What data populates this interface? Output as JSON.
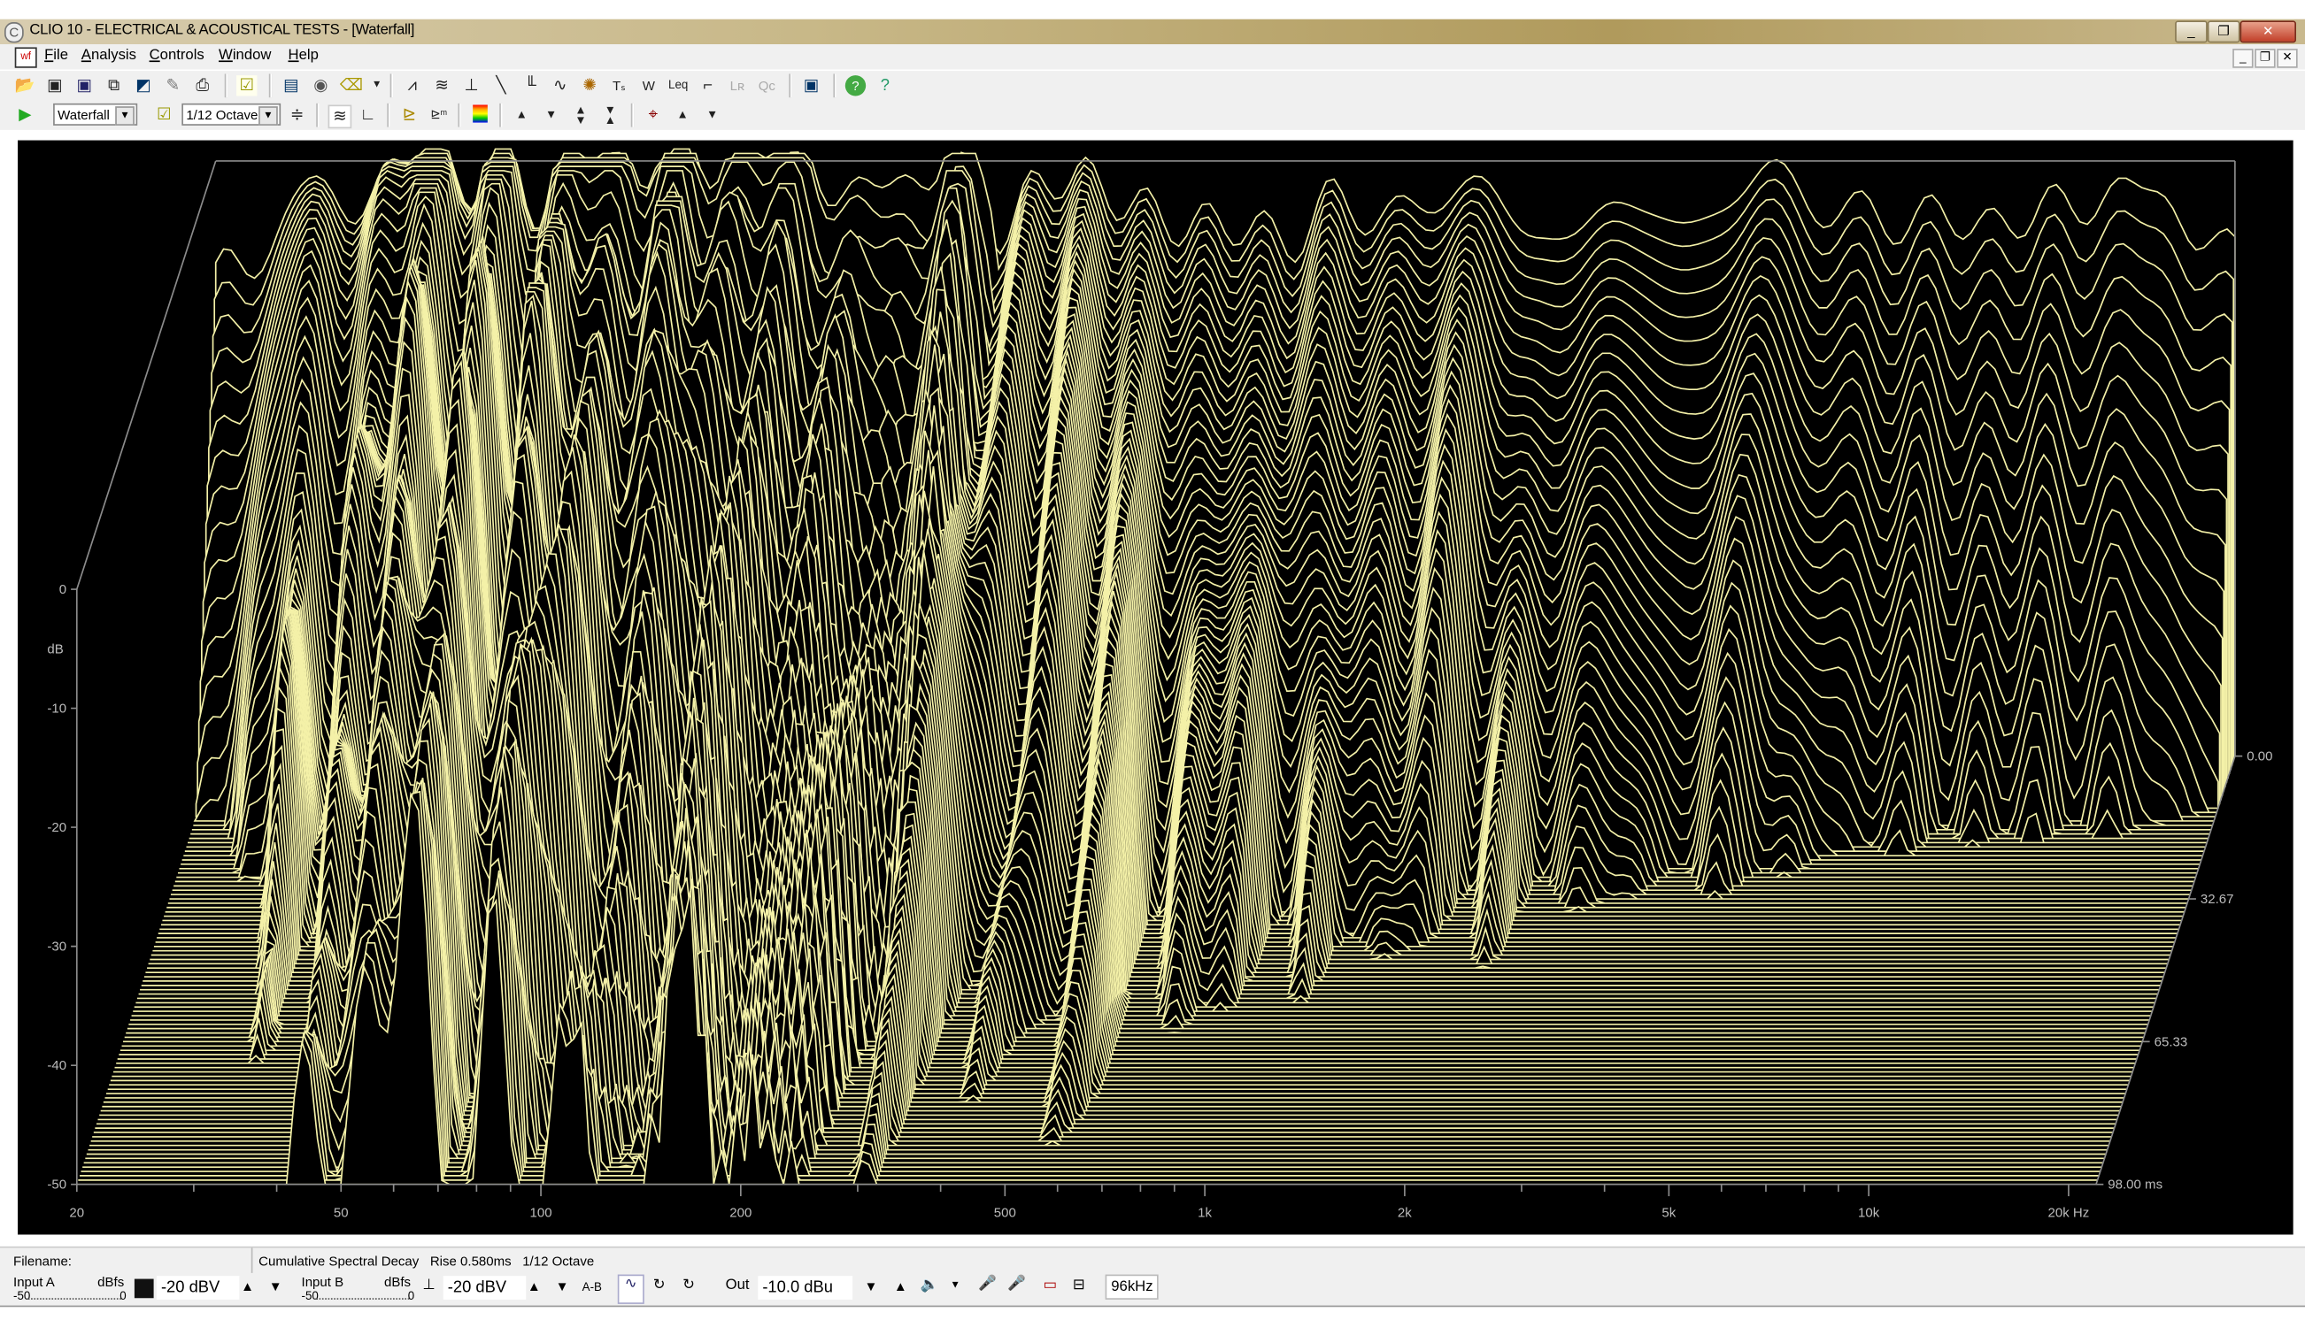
{
  "window": {
    "title": "CLIO 10 - ELECTRICAL & ACOUSTICAL TESTS - [Waterfall]",
    "app_icon": "clio-icon",
    "buttons": [
      "minimize",
      "restore",
      "close"
    ]
  },
  "menu": [
    "File",
    "Analysis",
    "Controls",
    "Window",
    "Help"
  ],
  "toolbar1": [
    "open-folder",
    "save",
    "save-as",
    "export",
    "export-image",
    "notes",
    "print",
    "autosave",
    "video",
    "camera",
    "eraser",
    "dropdown",
    "fft",
    "waterfall",
    "impulse",
    "sweep",
    "octave-bars",
    "sinus",
    "wow-flutter",
    "thiele-small",
    "wf",
    "leq",
    "step",
    "lr",
    "qc",
    "monitor",
    "help",
    "about"
  ],
  "toolbar2": {
    "mode_select": "Waterfall",
    "smoothing_select": "1/12 Octave",
    "icons": [
      "go",
      "autoscale",
      "expand",
      "waterfall-3d",
      "axis",
      "load",
      "mls-load",
      "color-map",
      "up",
      "down",
      "up-down",
      "shrink",
      "cursor",
      "cursor-up",
      "cursor-down"
    ]
  },
  "status": {
    "filename_label": "Filename:",
    "info": "Cumulative Spectral Decay   Rise 0.580ms   1/12 Octave"
  },
  "controls": {
    "input_a": "Input A",
    "input_a_unit": "dBfs",
    "input_a_scale_min": "-50",
    "input_a_scale_max": "0",
    "input_a_range": "-20 dBV",
    "input_b": "Input B",
    "input_b_unit": "dBfs",
    "input_b_scale_min": "-50",
    "input_b_scale_max": "0",
    "input_b_range": "-20 dBV",
    "ab_label": "A-B",
    "out_label": "Out",
    "out_level": "-10.0 dBu",
    "sample_rate": "96kHz"
  },
  "chart_data": {
    "type": "waterfall",
    "title": "",
    "xlabel": "Hz",
    "ylabel": "dB",
    "zlabel": "ms",
    "x_scale": "log",
    "xlim": [
      20,
      22000
    ],
    "ylim": [
      -50,
      0
    ],
    "zlim": [
      0,
      98
    ],
    "x_ticks": [
      {
        "value": 20,
        "label": "20"
      },
      {
        "value": 50,
        "label": "50"
      },
      {
        "value": 100,
        "label": "100"
      },
      {
        "value": 200,
        "label": "200"
      },
      {
        "value": 500,
        "label": "500"
      },
      {
        "value": 1000,
        "label": "1k"
      },
      {
        "value": 2000,
        "label": "2k"
      },
      {
        "value": 5000,
        "label": "5k"
      },
      {
        "value": 10000,
        "label": "10k"
      },
      {
        "value": 20000,
        "label": "20k Hz"
      }
    ],
    "y_ticks": [
      {
        "value": 0,
        "label": "0"
      },
      {
        "value": -10,
        "label": "-10"
      },
      {
        "value": -20,
        "label": "-20"
      },
      {
        "value": -30,
        "label": "-30"
      },
      {
        "value": -40,
        "label": "-40"
      },
      {
        "value": -50,
        "label": "-50"
      }
    ],
    "z_ticks": [
      {
        "value": 0,
        "label": "0.00"
      },
      {
        "value": 32.67,
        "label": "32.67"
      },
      {
        "value": 65.33,
        "label": "65.33"
      },
      {
        "value": 98,
        "label": "98.00 ms"
      }
    ],
    "slice_count": 100,
    "rise_ms": 0.58,
    "smoothing": "1/12 Octave",
    "initial_response": {
      "freq": [
        20,
        30,
        40,
        50,
        60,
        80,
        100,
        200,
        500,
        1000,
        2000,
        5000,
        10000,
        20000,
        22000
      ],
      "db": [
        -9,
        -4,
        -1,
        0,
        0,
        -1,
        -2,
        -3,
        -4,
        -5,
        -4,
        -4,
        -4,
        -5,
        -8
      ]
    },
    "line_color": "#f4f1a8",
    "background": "#000000",
    "frame_color": "#8c8c8c",
    "grid": false
  }
}
